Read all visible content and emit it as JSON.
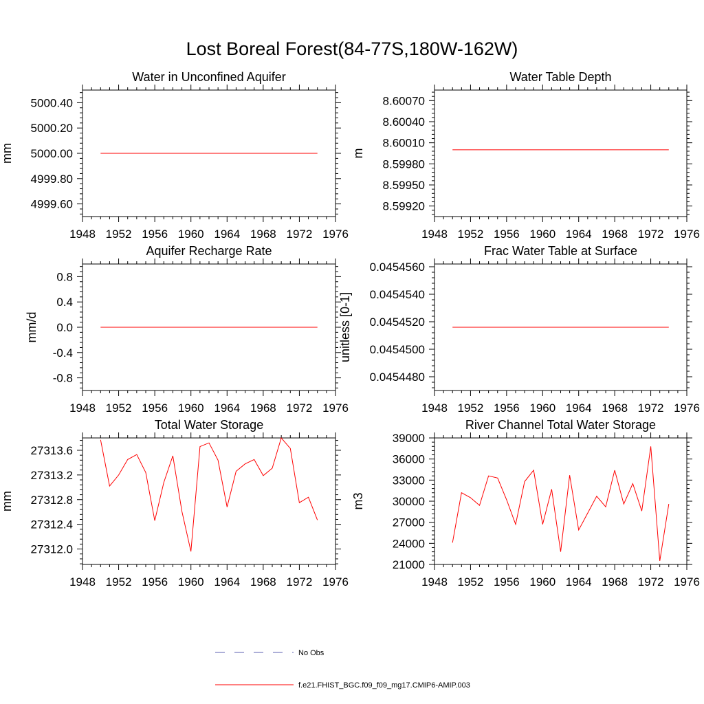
{
  "title": "Lost Boreal Forest(84-77S,180W-162W)",
  "legend": {
    "items": [
      {
        "label": "No Obs",
        "color": "#5b5fb0",
        "dashed": true
      },
      {
        "label": "f.e21.FHIST_BGC.f09_f09_mg17.CMIP6-AMIP.003",
        "color": "#ff0000",
        "dashed": false
      }
    ]
  },
  "chart_data": [
    {
      "type": "line",
      "title": "Water in Unconfined Aquifer",
      "ylabel": "mm",
      "xlim": [
        1948,
        1976
      ],
      "xticks": [
        "1948",
        "1952",
        "1956",
        "1960",
        "1964",
        "1968",
        "1972",
        "1976"
      ],
      "ylim": [
        4999.5,
        5000.5
      ],
      "yticks": [
        "4999.60",
        "4999.80",
        "5000.00",
        "5000.20",
        "5000.40"
      ],
      "ytick_values": [
        4999.6,
        4999.8,
        5000.0,
        5000.2,
        5000.4
      ],
      "series": [
        {
          "name": "f.e21.FHIST_BGC.f09_f09_mg17.CMIP6-AMIP.003",
          "color": "#ff0000",
          "x": [
            1950,
            1974
          ],
          "y": [
            5000.0,
            5000.0
          ]
        }
      ]
    },
    {
      "type": "line",
      "title": "Water Table Depth",
      "ylabel": "m",
      "xlim": [
        1948,
        1976
      ],
      "xticks": [
        "1948",
        "1952",
        "1956",
        "1960",
        "1964",
        "1968",
        "1972",
        "1976"
      ],
      "ylim": [
        8.59905,
        8.60085
      ],
      "yticks": [
        "8.59920",
        "8.59950",
        "8.59980",
        "8.60010",
        "8.60040",
        "8.60070"
      ],
      "ytick_values": [
        8.5992,
        8.5995,
        8.5998,
        8.6001,
        8.6004,
        8.6007
      ],
      "series": [
        {
          "name": "f.e21.FHIST_BGC.f09_f09_mg17.CMIP6-AMIP.003",
          "color": "#ff0000",
          "x": [
            1950,
            1974
          ],
          "y": [
            8.6,
            8.6
          ]
        }
      ]
    },
    {
      "type": "line",
      "title": "Aquifer Recharge Rate",
      "ylabel": "mm/d",
      "xlim": [
        1948,
        1976
      ],
      "xticks": [
        "1948",
        "1952",
        "1956",
        "1960",
        "1964",
        "1968",
        "1972",
        "1976"
      ],
      "ylim": [
        -1.0,
        1.0
      ],
      "yticks": [
        "-0.8",
        "-0.4",
        "0.0",
        "0.4",
        "0.8"
      ],
      "ytick_values": [
        -0.8,
        -0.4,
        0.0,
        0.4,
        0.8
      ],
      "series": [
        {
          "name": "f.e21.FHIST_BGC.f09_f09_mg17.CMIP6-AMIP.003",
          "color": "#ff0000",
          "x": [
            1950,
            1974
          ],
          "y": [
            0.0,
            0.0
          ]
        }
      ]
    },
    {
      "type": "line",
      "title": "Frac Water Table at Surface",
      "ylabel": "unitless [0-1]",
      "xlim": [
        1948,
        1976
      ],
      "xticks": [
        "1948",
        "1952",
        "1956",
        "1960",
        "1964",
        "1968",
        "1972",
        "1976"
      ],
      "ylim": [
        0.045447,
        0.0454562
      ],
      "yticks": [
        "0.0454480",
        "0.0454500",
        "0.0454520",
        "0.0454540",
        "0.0454560"
      ],
      "ytick_values": [
        0.045448,
        0.04545,
        0.045452,
        0.045454,
        0.045456
      ],
      "series": [
        {
          "name": "f.e21.FHIST_BGC.f09_f09_mg17.CMIP6-AMIP.003",
          "color": "#ff0000",
          "x": [
            1950,
            1974
          ],
          "y": [
            0.0454516,
            0.0454516
          ]
        }
      ]
    },
    {
      "type": "line",
      "title": "Total Water Storage",
      "ylabel": "mm",
      "xlim": [
        1948,
        1976
      ],
      "xticks": [
        "1948",
        "1952",
        "1956",
        "1960",
        "1964",
        "1968",
        "1972",
        "1976"
      ],
      "ylim": [
        27311.75,
        27313.8
      ],
      "yticks": [
        "27312.0",
        "27312.4",
        "27312.8",
        "27313.2",
        "27313.6"
      ],
      "ytick_values": [
        27312.0,
        27312.4,
        27312.8,
        27313.2,
        27313.6
      ],
      "series": [
        {
          "name": "f.e21.FHIST_BGC.f09_f09_mg17.CMIP6-AMIP.003",
          "color": "#ff0000",
          "x": [
            1950,
            1951,
            1952,
            1953,
            1954,
            1955,
            1956,
            1957,
            1958,
            1959,
            1960,
            1961,
            1962,
            1963,
            1964,
            1965,
            1966,
            1967,
            1968,
            1969,
            1970,
            1971,
            1972,
            1973,
            1974
          ],
          "y": [
            27313.77,
            27313.02,
            27313.2,
            27313.45,
            27313.53,
            27313.24,
            27312.46,
            27313.08,
            27313.51,
            27312.61,
            27311.96,
            27313.66,
            27313.72,
            27313.44,
            27312.68,
            27313.26,
            27313.38,
            27313.45,
            27313.19,
            27313.31,
            27313.8,
            27313.63,
            27312.75,
            27312.84,
            27312.47
          ]
        }
      ]
    },
    {
      "type": "line",
      "title": "River Channel Total Water Storage",
      "ylabel": "m3",
      "xlim": [
        1948,
        1976
      ],
      "xticks": [
        "1948",
        "1952",
        "1956",
        "1960",
        "1964",
        "1968",
        "1972",
        "1976"
      ],
      "ylim": [
        21000,
        39000
      ],
      "yticks": [
        "21000",
        "24000",
        "27000",
        "30000",
        "33000",
        "36000",
        "39000"
      ],
      "ytick_values": [
        21000,
        24000,
        27000,
        30000,
        33000,
        36000,
        39000
      ],
      "series": [
        {
          "name": "f.e21.FHIST_BGC.f09_f09_mg17.CMIP6-AMIP.003",
          "color": "#ff0000",
          "x": [
            1950,
            1951,
            1952,
            1953,
            1954,
            1955,
            1956,
            1957,
            1958,
            1959,
            1960,
            1961,
            1962,
            1963,
            1964,
            1965,
            1966,
            1967,
            1968,
            1969,
            1970,
            1971,
            1972,
            1973,
            1974
          ],
          "y": [
            24100,
            31200,
            30500,
            29400,
            33600,
            33300,
            30200,
            26700,
            32800,
            34400,
            26700,
            31700,
            22800,
            33700,
            25900,
            28300,
            30700,
            29200,
            34400,
            29600,
            32500,
            28600,
            37800,
            21500,
            29600
          ]
        }
      ]
    }
  ]
}
